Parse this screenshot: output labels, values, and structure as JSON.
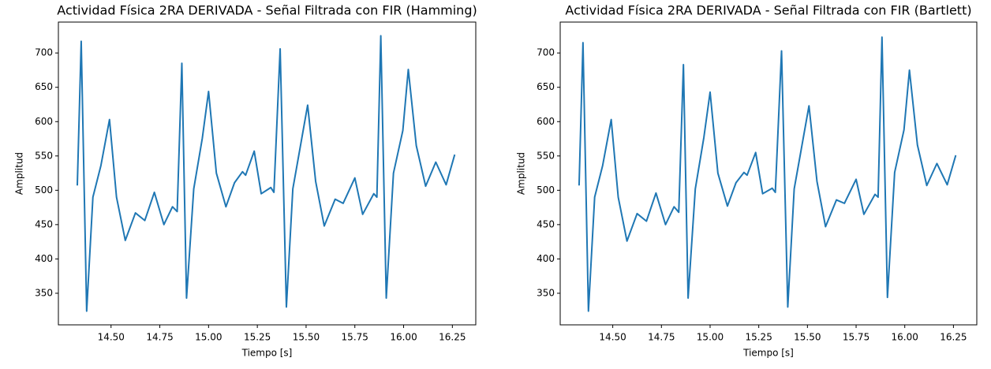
{
  "chart_data": [
    {
      "type": "line",
      "title": "Actividad Física 2RA DERIVADA - Señal Filtrada con FIR (Hamming)",
      "x_label": "Tiempo [s]",
      "y_label": "Amplitud",
      "x": [
        14.327,
        14.347,
        14.375,
        14.407,
        14.448,
        14.492,
        14.528,
        14.573,
        14.625,
        14.673,
        14.722,
        14.771,
        14.815,
        14.839,
        14.863,
        14.887,
        14.924,
        14.968,
        15.0,
        15.04,
        15.089,
        15.133,
        15.174,
        15.19,
        15.234,
        15.27,
        15.319,
        15.335,
        15.367,
        15.399,
        15.432,
        15.508,
        15.549,
        15.593,
        15.649,
        15.69,
        15.75,
        15.79,
        15.847,
        15.863,
        15.883,
        15.911,
        15.948,
        15.996,
        16.024,
        16.065,
        16.113,
        16.165,
        16.218,
        16.262
      ],
      "series": [
        {
          "name": "Hamming",
          "color": "#1f77b4",
          "values": [
            507,
            717,
            324,
            490,
            536,
            603,
            490,
            427,
            467,
            456,
            497,
            450,
            476,
            469,
            685,
            343,
            502,
            576,
            644,
            525,
            476,
            511,
            527,
            522,
            557,
            495,
            504,
            497,
            706,
            330,
            502,
            624,
            513,
            448,
            487,
            481,
            518,
            465,
            495,
            490,
            725,
            343,
            525,
            587,
            676,
            565,
            506,
            541,
            508,
            552
          ]
        }
      ],
      "xlim": [
        14.23,
        16.37
      ],
      "ylim": [
        304,
        745
      ],
      "xticks": [
        {
          "value": 14.5,
          "label": "14.50"
        },
        {
          "value": 14.75,
          "label": "14.75"
        },
        {
          "value": 15.0,
          "label": "15.00"
        },
        {
          "value": 15.25,
          "label": "15.25"
        },
        {
          "value": 15.5,
          "label": "15.50"
        },
        {
          "value": 15.75,
          "label": "15.75"
        },
        {
          "value": 16.0,
          "label": "16.00"
        },
        {
          "value": 16.25,
          "label": "16.25"
        }
      ],
      "yticks": [
        350,
        400,
        450,
        500,
        550,
        600,
        650,
        700
      ],
      "grid": false
    },
    {
      "type": "line",
      "title": "Actividad Física 2RA DERIVADA - Señal Filtrada con FIR (Bartlett)",
      "x_label": "Tiempo [s]",
      "y_label": "Amplitud",
      "x": [
        14.327,
        14.347,
        14.375,
        14.407,
        14.448,
        14.492,
        14.528,
        14.573,
        14.625,
        14.673,
        14.722,
        14.771,
        14.815,
        14.839,
        14.863,
        14.887,
        14.924,
        14.968,
        15.0,
        15.04,
        15.089,
        15.133,
        15.174,
        15.19,
        15.234,
        15.27,
        15.319,
        15.335,
        15.367,
        15.399,
        15.432,
        15.508,
        15.549,
        15.593,
        15.649,
        15.69,
        15.75,
        15.79,
        15.847,
        15.863,
        15.883,
        15.911,
        15.948,
        15.996,
        16.024,
        16.065,
        16.113,
        16.165,
        16.218,
        16.262
      ],
      "series": [
        {
          "name": "Bartlett",
          "color": "#1f77b4",
          "values": [
            507,
            715,
            324,
            490,
            536,
            603,
            490,
            426,
            466,
            455,
            496,
            450,
            476,
            468,
            683,
            343,
            502,
            577,
            643,
            525,
            477,
            511,
            526,
            522,
            555,
            495,
            503,
            497,
            703,
            330,
            502,
            623,
            513,
            447,
            486,
            481,
            516,
            465,
            494,
            490,
            723,
            344,
            526,
            588,
            675,
            566,
            507,
            539,
            508,
            551
          ]
        }
      ],
      "xlim": [
        14.23,
        16.37
      ],
      "ylim": [
        304,
        745
      ],
      "xticks": [
        {
          "value": 14.5,
          "label": "14.50"
        },
        {
          "value": 14.75,
          "label": "14.75"
        },
        {
          "value": 15.0,
          "label": "15.00"
        },
        {
          "value": 15.25,
          "label": "15.25"
        },
        {
          "value": 15.5,
          "label": "15.50"
        },
        {
          "value": 15.75,
          "label": "15.75"
        },
        {
          "value": 16.0,
          "label": "16.00"
        },
        {
          "value": 16.25,
          "label": "16.25"
        }
      ],
      "yticks": [
        350,
        400,
        450,
        500,
        550,
        600,
        650,
        700
      ],
      "grid": false
    }
  ]
}
